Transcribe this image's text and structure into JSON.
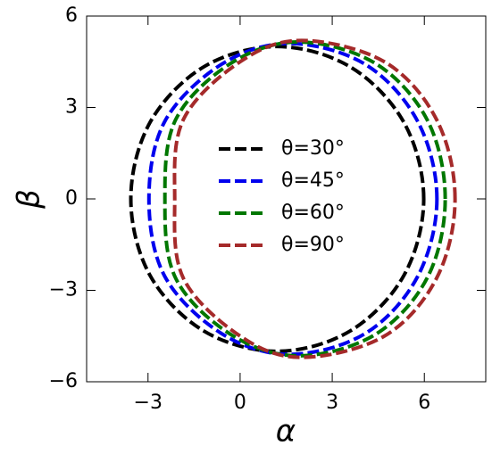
{
  "chart_data": {
    "type": "line",
    "x_label": "α",
    "y_label": "β",
    "xlim": [
      -5,
      8
    ],
    "ylim": [
      -6,
      6
    ],
    "xticks": [
      {
        "value": -3,
        "label": "−3"
      },
      0,
      3,
      6
    ],
    "yticks": [
      {
        "value": -6,
        "label": "−6"
      },
      {
        "value": -3,
        "label": "−3"
      },
      0,
      3,
      6
    ],
    "legend": "center",
    "series": [
      {
        "name": "θ=30°",
        "color": "#000000",
        "x": [
          5.98,
          5.34,
          3.59,
          1.2,
          -1.19,
          -2.94,
          -3.56,
          -2.94,
          -1.19,
          1.2,
          3.59,
          5.34,
          5.98
        ],
        "values": [
          0,
          2.5,
          4.33,
          5.0,
          4.33,
          2.5,
          0,
          -2.5,
          -4.33,
          -5.0,
          -4.33,
          -2.5,
          0
        ]
      },
      {
        "name": "θ=45°",
        "color": "#0000ee",
        "x": [
          6.41,
          5.78,
          4.07,
          1.6,
          -0.6,
          -2.45,
          -2.97,
          -2.45,
          -0.6,
          1.6,
          4.07,
          5.78,
          6.41
        ],
        "values": [
          0,
          2.55,
          4.42,
          5.1,
          4.42,
          2.55,
          0,
          -2.55,
          -4.42,
          -5.1,
          -4.42,
          -2.55,
          0
        ]
      },
      {
        "name": "θ=60°",
        "color": "#007700",
        "x": [
          6.68,
          6.1,
          4.4,
          1.9,
          -0.3,
          -2.1,
          -2.45,
          -2.1,
          -0.3,
          1.9,
          4.4,
          6.1,
          6.68
        ],
        "values": [
          0,
          2.58,
          4.45,
          5.15,
          4.45,
          2.6,
          0,
          -2.6,
          -4.45,
          -5.15,
          -4.45,
          -2.58,
          0
        ]
      },
      {
        "name": "θ=90°",
        "color": "#a52a2a",
        "x": [
          7.0,
          6.4,
          4.7,
          2.0,
          0.0,
          -1.85,
          -2.13,
          -1.85,
          0.0,
          2.0,
          4.7,
          6.4,
          7.0
        ],
        "values": [
          0,
          2.6,
          4.5,
          5.2,
          4.5,
          2.6,
          0,
          -2.6,
          -4.5,
          -5.2,
          -4.5,
          -2.6,
          0
        ]
      }
    ]
  }
}
